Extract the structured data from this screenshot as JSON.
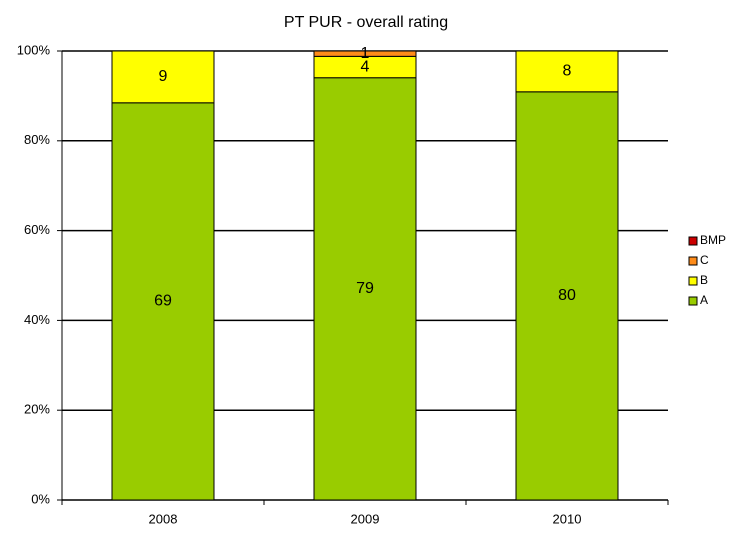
{
  "chart_data": {
    "type": "bar",
    "stacked": "percent",
    "title": "PT PUR - overall rating",
    "categories": [
      "2008",
      "2009",
      "2010"
    ],
    "series": [
      {
        "name": "A",
        "color": "#99cc00",
        "values": [
          69,
          79,
          80
        ]
      },
      {
        "name": "B",
        "color": "#ffff00",
        "values": [
          9,
          4,
          8
        ]
      },
      {
        "name": "C",
        "color": "#ff8c1a",
        "values": [
          0,
          1,
          0
        ]
      },
      {
        "name": "BMP",
        "color": "#cc0000",
        "values": [
          0,
          0,
          0
        ]
      }
    ],
    "ylim": [
      0,
      100
    ],
    "yticks": [
      {
        "value": 0,
        "label": "0%"
      },
      {
        "value": 20,
        "label": "20%"
      },
      {
        "value": 40,
        "label": "40%"
      },
      {
        "value": 60,
        "label": "60%"
      },
      {
        "value": 80,
        "label": "80%"
      },
      {
        "value": 100,
        "label": "100%"
      }
    ],
    "grid": true,
    "legend": "right"
  }
}
